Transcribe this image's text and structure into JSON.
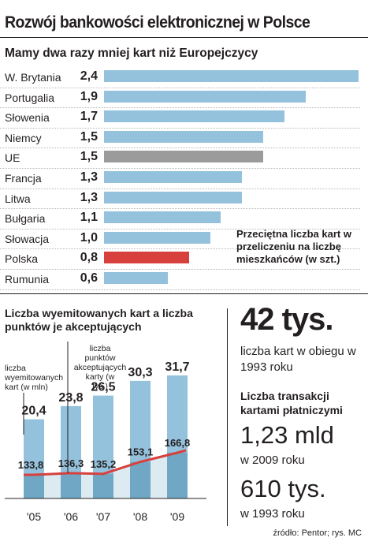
{
  "title": "Rozwój bankowości elektronicznej w Polsce",
  "colors": {
    "bar": "#94c2dc",
    "bar_eu": "#9b9b9b",
    "bar_poland": "#d7403d",
    "column": "#94c2dc",
    "column_overlap": "#6fa7c4",
    "area": "#dcebf1",
    "line": "#d7403d"
  },
  "chart_data": [
    {
      "type": "bar",
      "orientation": "horizontal",
      "title": "Mamy dwa razy mniej kart niż Europejczycy",
      "categories": [
        "W. Brytania",
        "Portugalia",
        "Słowenia",
        "Niemcy",
        "UE",
        "Francja",
        "Litwa",
        "Bułgaria",
        "Słowacja",
        "Polska",
        "Rumunia"
      ],
      "values": [
        2.4,
        1.9,
        1.7,
        1.5,
        1.5,
        1.3,
        1.3,
        1.1,
        1.0,
        0.8,
        0.6
      ],
      "value_labels": [
        "2,4",
        "1,9",
        "1,7",
        "1,5",
        "1,5",
        "1,3",
        "1,3",
        "1,1",
        "1,0",
        "0,8",
        "0,6"
      ],
      "highlight": {
        "UE": "gray",
        "Polska": "red"
      },
      "annotation": "Przeciętna liczba kart w przeliczeniu na liczbę mieszkańców (w szt.)",
      "xlim": [
        0,
        2.4
      ],
      "grid": false,
      "legend": "none"
    },
    {
      "type": "bar+line",
      "title": "Liczba wyemitowanych kart a liczba punktów je akceptujących",
      "categories": [
        "'05",
        "'06",
        "'07",
        "'08",
        "'09"
      ],
      "series": [
        {
          "name": "liczba wyemitowanych kart (w mln)",
          "type": "bar",
          "values": [
            20.4,
            23.8,
            26.5,
            30.3,
            31.7
          ],
          "value_labels": [
            "20,4",
            "23,8",
            "26,5",
            "30,3",
            "31,7"
          ]
        },
        {
          "name": "liczba punktów akceptujących karty (w tys.)",
          "type": "line",
          "values": [
            133.8,
            136.3,
            135.2,
            153.1,
            166.8
          ],
          "value_labels": [
            "133,8",
            "136,3",
            "135,2",
            "153,1",
            "166,8"
          ]
        }
      ],
      "grid": false,
      "legend": "annotations"
    }
  ],
  "stats": {
    "cards_value": "42 tys.",
    "cards_label": "liczba kart w obiegu w 1993 roku",
    "transactions_heading": "Liczba transakcji kartami płatniczymi",
    "transactions_2009_value": "1,23 mld",
    "transactions_2009_label": "w 2009 roku",
    "transactions_1993_value": "610 tys.",
    "transactions_1993_label": "w 1993 roku"
  },
  "source": "źródło: Pentor; rys. MC"
}
